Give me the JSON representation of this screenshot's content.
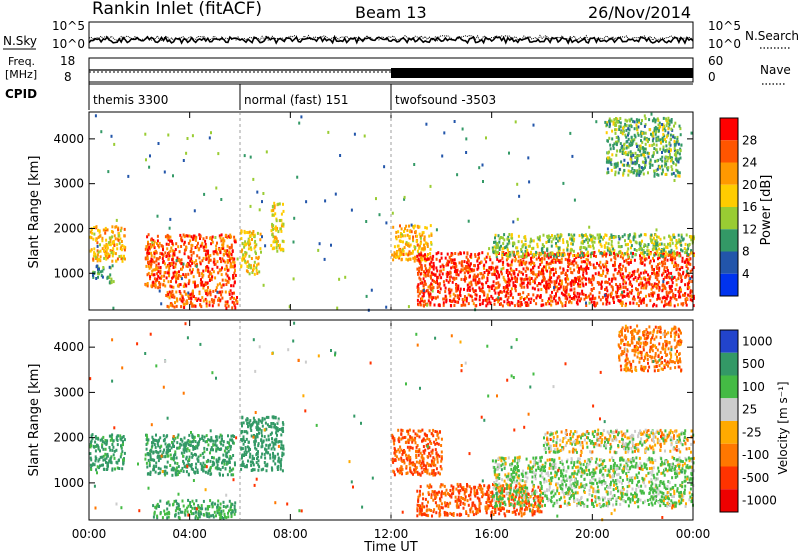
{
  "header": {
    "station": "Rankin Inlet (fitACF)",
    "beam": "Beam 13",
    "date": "26/Nov/2014"
  },
  "noise_panel": {
    "left_label": "N.Sky",
    "right_label": "N.Search",
    "left_ticks": [
      "10^5",
      "10^0"
    ],
    "right_ticks": [
      "10^5",
      "10^0"
    ]
  },
  "freq_panel": {
    "left_label_1": "Freq.",
    "left_label_2": "[MHz]",
    "left_ticks": [
      "18",
      "8"
    ],
    "right_label": "Nave",
    "right_ticks": [
      "60",
      "0"
    ],
    "cpid_label": "CPID"
  },
  "cpid_segments": [
    {
      "label": "themis 3300",
      "start_hour": 0,
      "end_hour": 6
    },
    {
      "label": "normal (fast) 151",
      "start_hour": 6,
      "end_hour": 12
    },
    {
      "label": "twofsound -3503",
      "start_hour": 12,
      "end_hour": 24
    }
  ],
  "time_axis": {
    "label": "Time UT",
    "ticks": [
      "00:00",
      "04:00",
      "08:00",
      "12:00",
      "16:00",
      "20:00",
      "00:00"
    ]
  },
  "range_axis": {
    "label": "Slant Range [km]",
    "ticks": [
      "1000",
      "2000",
      "3000",
      "4000"
    ]
  },
  "power_colorbar": {
    "label": "Power [dB]",
    "ticks": [
      "28",
      "24",
      "20",
      "16",
      "12",
      "8",
      "4"
    ],
    "colors": [
      "#ff0000",
      "#ff5500",
      "#ff9900",
      "#ffcc00",
      "#99cc33",
      "#339966",
      "#2255aa",
      "#0033ee"
    ]
  },
  "velocity_colorbar": {
    "label": "Velocity [m s⁻¹]",
    "ticks": [
      "1000",
      "500",
      "100",
      "25",
      "-25",
      "-100",
      "-500",
      "-1000"
    ],
    "colors": [
      "#2244cc",
      "#339966",
      "#44bb44",
      "#cccccc",
      "#ffaa00",
      "#ff7700",
      "#ff3300",
      "#ee0000"
    ]
  },
  "chart_data": [
    {
      "type": "heatmap",
      "title": "Power",
      "xlabel": "Time UT",
      "ylabel": "Slant Range [km]",
      "xlim_hours": [
        0,
        24
      ],
      "ylim_km": [
        180,
        4600
      ],
      "colorbar_label": "Power [dB]",
      "colorbar_range_db": [
        0,
        32
      ],
      "echo_regions": [
        {
          "t0": 0.0,
          "t1": 1.4,
          "r0": 1300,
          "r1": 2100,
          "level": 20
        },
        {
          "t0": 0.1,
          "t1": 0.9,
          "r0": 800,
          "r1": 1200,
          "level": 10
        },
        {
          "t0": 2.2,
          "t1": 5.8,
          "r0": 700,
          "r1": 1900,
          "level": 26
        },
        {
          "t0": 3.0,
          "t1": 5.9,
          "r0": 250,
          "r1": 650,
          "level": 26
        },
        {
          "t0": 6.0,
          "t1": 6.8,
          "r0": 1000,
          "r1": 2000,
          "level": 18
        },
        {
          "t0": 7.2,
          "t1": 7.7,
          "r0": 1500,
          "r1": 2600,
          "level": 18
        },
        {
          "t0": 12.0,
          "t1": 13.6,
          "r0": 1300,
          "r1": 2100,
          "level": 20
        },
        {
          "t0": 13.0,
          "t1": 24.0,
          "r0": 300,
          "r1": 1500,
          "level": 28
        },
        {
          "t0": 16.0,
          "t1": 24.0,
          "r0": 1400,
          "r1": 1900,
          "level": 14
        },
        {
          "t0": 20.5,
          "t1": 23.5,
          "r0": 3200,
          "r1": 4500,
          "level": 12
        }
      ]
    },
    {
      "type": "heatmap",
      "title": "Velocity",
      "xlabel": "Time UT",
      "ylabel": "Slant Range [km]",
      "xlim_hours": [
        0,
        24
      ],
      "ylim_km": [
        180,
        4600
      ],
      "colorbar_label": "Velocity [m s⁻¹]",
      "colorbar_range_ms": [
        -1000,
        1000
      ],
      "echo_regions": [
        {
          "t0": 0.0,
          "t1": 1.4,
          "r0": 1300,
          "r1": 2100,
          "vel": 400
        },
        {
          "t0": 2.2,
          "t1": 5.8,
          "r0": 1200,
          "r1": 2100,
          "vel": 400
        },
        {
          "t0": 2.5,
          "t1": 5.8,
          "r0": 250,
          "r1": 650,
          "vel": 300
        },
        {
          "t0": 6.0,
          "t1": 7.7,
          "r0": 1300,
          "r1": 2500,
          "vel": 500
        },
        {
          "t0": 12.0,
          "t1": 14.0,
          "r0": 1200,
          "r1": 2200,
          "vel": -300
        },
        {
          "t0": 13.0,
          "t1": 18.0,
          "r0": 300,
          "r1": 1000,
          "vel": -300
        },
        {
          "t0": 16.0,
          "t1": 24.0,
          "r0": 500,
          "r1": 1600,
          "vel": 80
        },
        {
          "t0": 18.0,
          "t1": 24.0,
          "r0": 1700,
          "r1": 2200,
          "vel": 0
        },
        {
          "t0": 21.0,
          "t1": 23.5,
          "r0": 3500,
          "r1": 4500,
          "vel": -200
        }
      ]
    }
  ]
}
